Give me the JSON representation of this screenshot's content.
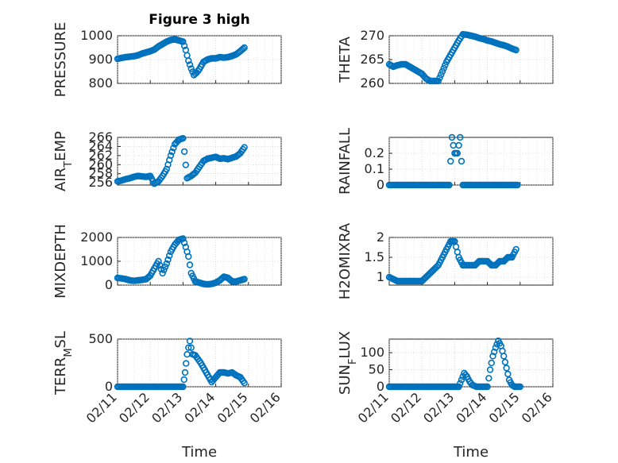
{
  "figure": {
    "title": "Figure 3 high",
    "marker_color": "#0072BD",
    "xtick_labels": [
      "02/11",
      "02/12",
      "02/13",
      "02/14",
      "02/15",
      "02/16"
    ],
    "xlabel": "Time"
  },
  "chart_data": [
    {
      "id": "pressure",
      "type": "scatter",
      "column": 0,
      "row": 0,
      "title": "Figure 3 high",
      "ylabel": "PRESSURE",
      "ylabel_sub": "",
      "ylim": [
        800,
        1000
      ],
      "yticks": [
        800,
        900,
        1000
      ],
      "ytick_labels": [
        "800",
        "900",
        "1000"
      ],
      "xlim": [
        "02/11",
        "02/16"
      ],
      "grid": true,
      "x": [
        "02/11 00:00",
        "02/11 03:00",
        "02/11 06:00",
        "02/11 09:00",
        "02/11 12:00",
        "02/11 15:00",
        "02/11 18:00",
        "02/11 21:00",
        "02/12 00:00",
        "02/12 03:00",
        "02/12 06:00",
        "02/12 09:00",
        "02/12 12:00",
        "02/12 15:00",
        "02/12 18:00",
        "02/12 21:00",
        "02/13 00:00",
        "02/13 02:00",
        "02/13 04:00",
        "02/13 06:00",
        "02/13 08:00",
        "02/13 10:00",
        "02/13 12:00",
        "02/13 15:00",
        "02/13 18:00",
        "02/13 21:00",
        "02/14 00:00",
        "02/14 03:00",
        "02/14 06:00",
        "02/14 09:00",
        "02/14 12:00",
        "02/14 15:00",
        "02/14 18:00",
        "02/14 21:00"
      ],
      "y": [
        903,
        907,
        910,
        912,
        914,
        918,
        925,
        930,
        935,
        942,
        955,
        965,
        975,
        982,
        985,
        980,
        975,
        940,
        895,
        862,
        835,
        845,
        860,
        890,
        900,
        905,
        905,
        910,
        908,
        910,
        915,
        922,
        935,
        950
      ]
    },
    {
      "id": "theta",
      "type": "scatter",
      "column": 1,
      "row": 0,
      "ylabel": "THETA",
      "ylabel_sub": "",
      "ylim": [
        260,
        270
      ],
      "yticks": [
        260,
        265,
        270
      ],
      "ytick_labels": [
        "260",
        "265",
        "270"
      ],
      "xlim": [
        "02/11",
        "02/16"
      ],
      "grid": true,
      "x": [
        "02/11 00:00",
        "02/11 03:00",
        "02/11 06:00",
        "02/11 09:00",
        "02/11 12:00",
        "02/11 15:00",
        "02/11 18:00",
        "02/11 21:00",
        "02/12 00:00",
        "02/12 03:00",
        "02/12 06:00",
        "02/12 09:00",
        "02/12 12:00",
        "02/12 15:00",
        "02/12 18:00",
        "02/12 21:00",
        "02/13 00:00",
        "02/13 03:00",
        "02/13 06:00",
        "02/13 09:00",
        "02/13 12:00",
        "02/13 15:00",
        "02/13 18:00",
        "02/13 21:00",
        "02/14 00:00",
        "02/14 03:00",
        "02/14 06:00",
        "02/14 09:00",
        "02/14 12:00",
        "02/14 15:00",
        "02/14 18:00",
        "02/14 21:00"
      ],
      "y": [
        264,
        263.5,
        263.8,
        264,
        264,
        263.5,
        263,
        262.5,
        262,
        261,
        260.5,
        260.5,
        260.5,
        262.5,
        264.5,
        266,
        267.5,
        269,
        270.3,
        270.2,
        270,
        269.8,
        269.5,
        269.3,
        269,
        268.8,
        268.5,
        268.2,
        268,
        267.7,
        267.3,
        267
      ]
    },
    {
      "id": "air_temp",
      "type": "scatter",
      "column": 0,
      "row": 1,
      "ylabel": "AIR",
      "ylabel_sub": "T",
      "ylabel_suffix": "EMP",
      "ylim": [
        255.5,
        266
      ],
      "yticks": [
        256,
        258,
        260,
        262,
        264,
        266
      ],
      "ytick_labels": [
        "256",
        "258",
        "260",
        "262",
        "264",
        "266"
      ],
      "xlim": [
        "02/11",
        "02/16"
      ],
      "grid": true,
      "x": [
        "02/11 00:00",
        "02/11 03:00",
        "02/11 06:00",
        "02/11 09:00",
        "02/11 12:00",
        "02/11 15:00",
        "02/11 18:00",
        "02/11 21:00",
        "02/12 00:00",
        "02/12 03:00",
        "02/12 06:00",
        "02/12 09:00",
        "02/12 12:00",
        "02/12 15:00",
        "02/12 18:00",
        "02/12 21:00",
        "02/13 00:00",
        "02/13 03:00",
        "02/13 06:00",
        "02/13 09:00",
        "02/13 12:00",
        "02/13 15:00",
        "02/13 18:00",
        "02/13 21:00",
        "02/14 00:00",
        "02/14 03:00",
        "02/14 06:00",
        "02/14 09:00",
        "02/14 12:00",
        "02/14 15:00",
        "02/14 18:00",
        "02/14 21:00"
      ],
      "y": [
        256.3,
        256.5,
        256.8,
        257,
        257.3,
        257.5,
        257.4,
        257.3,
        257.5,
        255.8,
        256.3,
        257.5,
        259,
        262,
        264.5,
        265.5,
        265.8,
        257,
        257.5,
        258.2,
        259.5,
        260.8,
        261.3,
        261.5,
        261.7,
        261.3,
        261.4,
        261.2,
        261.5,
        261.8,
        262.5,
        263.8
      ]
    },
    {
      "id": "rainfall",
      "type": "scatter",
      "column": 1,
      "row": 1,
      "ylabel": "RAINFALL",
      "ylabel_sub": "",
      "ylim": [
        0,
        0.3
      ],
      "yticks": [
        0,
        0.1,
        0.2
      ],
      "ytick_labels": [
        "0",
        "0.1",
        "0.2"
      ],
      "xlim": [
        "02/11",
        "02/16"
      ],
      "grid": true,
      "x": [
        "02/11 00:00",
        "02/11 04:00",
        "02/11 08:00",
        "02/11 12:00",
        "02/11 16:00",
        "02/11 20:00",
        "02/12 00:00",
        "02/12 04:00",
        "02/12 08:00",
        "02/12 12:00",
        "02/12 16:00",
        "02/12 20:00",
        "02/12 22:00",
        "02/13 00:00",
        "02/13 02:00",
        "02/13 04:00",
        "02/13 06:00",
        "02/13 10:00",
        "02/13 14:00",
        "02/13 18:00",
        "02/13 22:00",
        "02/14 02:00",
        "02/14 06:00",
        "02/14 10:00",
        "02/14 14:00",
        "02/14 18:00",
        "02/14 22:00"
      ],
      "y": [
        0,
        0,
        0,
        0,
        0,
        0,
        0,
        0,
        0,
        0,
        0,
        0,
        0.3,
        0.2,
        0.2,
        0.3,
        0,
        0,
        0,
        0,
        0,
        0,
        0,
        0,
        0,
        0,
        0
      ]
    },
    {
      "id": "mixdepth",
      "type": "scatter",
      "column": 0,
      "row": 2,
      "ylabel": "MIXDEPTH",
      "ylabel_sub": "",
      "ylim": [
        0,
        2000
      ],
      "yticks": [
        0,
        1000,
        2000
      ],
      "ytick_labels": [
        "0",
        "1000",
        "2000"
      ],
      "xlim": [
        "02/11",
        "02/16"
      ],
      "grid": true,
      "x": [
        "02/11 00:00",
        "02/11 03:00",
        "02/11 06:00",
        "02/11 09:00",
        "02/11 12:00",
        "02/11 15:00",
        "02/11 18:00",
        "02/11 21:00",
        "02/12 00:00",
        "02/12 03:00",
        "02/12 06:00",
        "02/12 09:00",
        "02/12 12:00",
        "02/12 15:00",
        "02/12 18:00",
        "02/12 21:00",
        "02/13 00:00",
        "02/13 02:00",
        "02/13 04:00",
        "02/13 06:00",
        "02/13 09:00",
        "02/13 12:00",
        "02/13 15:00",
        "02/13 18:00",
        "02/13 21:00",
        "02/14 00:00",
        "02/14 03:00",
        "02/14 06:00",
        "02/14 09:00",
        "02/14 12:00",
        "02/14 15:00",
        "02/14 18:00",
        "02/14 21:00"
      ],
      "y": [
        300,
        280,
        250,
        200,
        180,
        200,
        220,
        250,
        400,
        700,
        1000,
        500,
        900,
        1400,
        1700,
        1900,
        1950,
        1600,
        1200,
        500,
        150,
        100,
        50,
        30,
        50,
        100,
        200,
        350,
        300,
        150,
        150,
        200,
        250
      ]
    },
    {
      "id": "h2omixra",
      "type": "scatter",
      "column": 1,
      "row": 2,
      "ylabel": "H2OMIXRA",
      "ylabel_sub": "",
      "ylim": [
        0.8,
        2
      ],
      "yticks": [
        1,
        1.5,
        2
      ],
      "ytick_labels": [
        "1",
        "1.5",
        "2"
      ],
      "xlim": [
        "02/11",
        "02/16"
      ],
      "grid": true,
      "x": [
        "02/11 00:00",
        "02/11 03:00",
        "02/11 06:00",
        "02/11 09:00",
        "02/11 12:00",
        "02/11 15:00",
        "02/11 18:00",
        "02/11 21:00",
        "02/12 00:00",
        "02/12 03:00",
        "02/12 06:00",
        "02/12 09:00",
        "02/12 12:00",
        "02/12 15:00",
        "02/12 18:00",
        "02/12 21:00",
        "02/13 00:00",
        "02/13 03:00",
        "02/13 06:00",
        "02/13 09:00",
        "02/13 12:00",
        "02/13 15:00",
        "02/13 18:00",
        "02/13 21:00",
        "02/14 00:00",
        "02/14 03:00",
        "02/14 06:00",
        "02/14 09:00",
        "02/14 12:00",
        "02/14 15:00",
        "02/14 18:00",
        "02/14 21:00"
      ],
      "y": [
        1,
        0.95,
        0.9,
        0.9,
        0.9,
        0.9,
        0.9,
        0.9,
        0.9,
        1,
        1.1,
        1.2,
        1.3,
        1.5,
        1.7,
        1.9,
        1.9,
        1.5,
        1.3,
        1.3,
        1.3,
        1.3,
        1.4,
        1.4,
        1.4,
        1.3,
        1.3,
        1.4,
        1.4,
        1.5,
        1.5,
        1.7
      ]
    },
    {
      "id": "terr_msl",
      "type": "scatter",
      "column": 0,
      "row": 3,
      "ylabel": "TERR",
      "ylabel_sub": "M",
      "ylabel_suffix": "SL",
      "ylim": [
        0,
        500
      ],
      "yticks": [
        0,
        500
      ],
      "ytick_labels": [
        "0",
        "500"
      ],
      "xlim": [
        "02/11",
        "02/16"
      ],
      "grid": true,
      "x": [
        "02/11 00:00",
        "02/11 06:00",
        "02/11 12:00",
        "02/11 18:00",
        "02/12 00:00",
        "02/12 06:00",
        "02/12 12:00",
        "02/12 18:00",
        "02/12 22:00",
        "02/13 00:00",
        "02/13 01:30",
        "02/13 03:00",
        "02/13 05:00",
        "02/13 07:00",
        "02/13 09:00",
        "02/13 11:00",
        "02/13 13:00",
        "02/13 15:00",
        "02/13 17:00",
        "02/13 19:00",
        "02/13 21:00",
        "02/14 00:00",
        "02/14 03:00",
        "02/14 06:00",
        "02/14 09:00",
        "02/14 12:00",
        "02/14 15:00",
        "02/14 18:00",
        "02/14 21:00"
      ],
      "y": [
        0,
        0,
        0,
        0,
        0,
        0,
        0,
        0,
        0,
        0,
        150,
        340,
        480,
        340,
        330,
        290,
        250,
        200,
        150,
        100,
        50,
        100,
        150,
        150,
        140,
        150,
        120,
        100,
        40
      ]
    },
    {
      "id": "sun_flux",
      "type": "scatter",
      "column": 1,
      "row": 3,
      "ylabel": "SUN",
      "ylabel_sub": "F",
      "ylabel_suffix": "LUX",
      "ylim": [
        0,
        140
      ],
      "yticks": [
        0,
        50,
        100
      ],
      "ytick_labels": [
        "0",
        "50",
        "100"
      ],
      "xlim": [
        "02/11",
        "02/16"
      ],
      "grid": true,
      "x": [
        "02/11 00:00",
        "02/11 06:00",
        "02/11 12:00",
        "02/11 18:00",
        "02/12 00:00",
        "02/12 06:00",
        "02/12 12:00",
        "02/12 18:00",
        "02/13 00:00",
        "02/13 03:00",
        "02/13 05:00",
        "02/13 07:00",
        "02/13 09:00",
        "02/13 11:00",
        "02/13 13:00",
        "02/13 16:00",
        "02/13 19:00",
        "02/13 22:00",
        "02/14 00:00",
        "02/14 02:00",
        "02/14 04:00",
        "02/14 06:00",
        "02/14 08:00",
        "02/14 10:00",
        "02/14 12:00",
        "02/14 14:00",
        "02/14 16:00",
        "02/14 18:00",
        "02/14 20:00",
        "02/14 22:00",
        "02/15 00:00"
      ],
      "y": [
        0,
        0,
        0,
        0,
        0,
        0,
        0,
        0,
        0,
        0,
        20,
        40,
        30,
        15,
        5,
        0,
        0,
        0,
        0,
        50,
        90,
        115,
        135,
        120,
        90,
        55,
        20,
        5,
        0,
        0,
        0
      ]
    }
  ]
}
